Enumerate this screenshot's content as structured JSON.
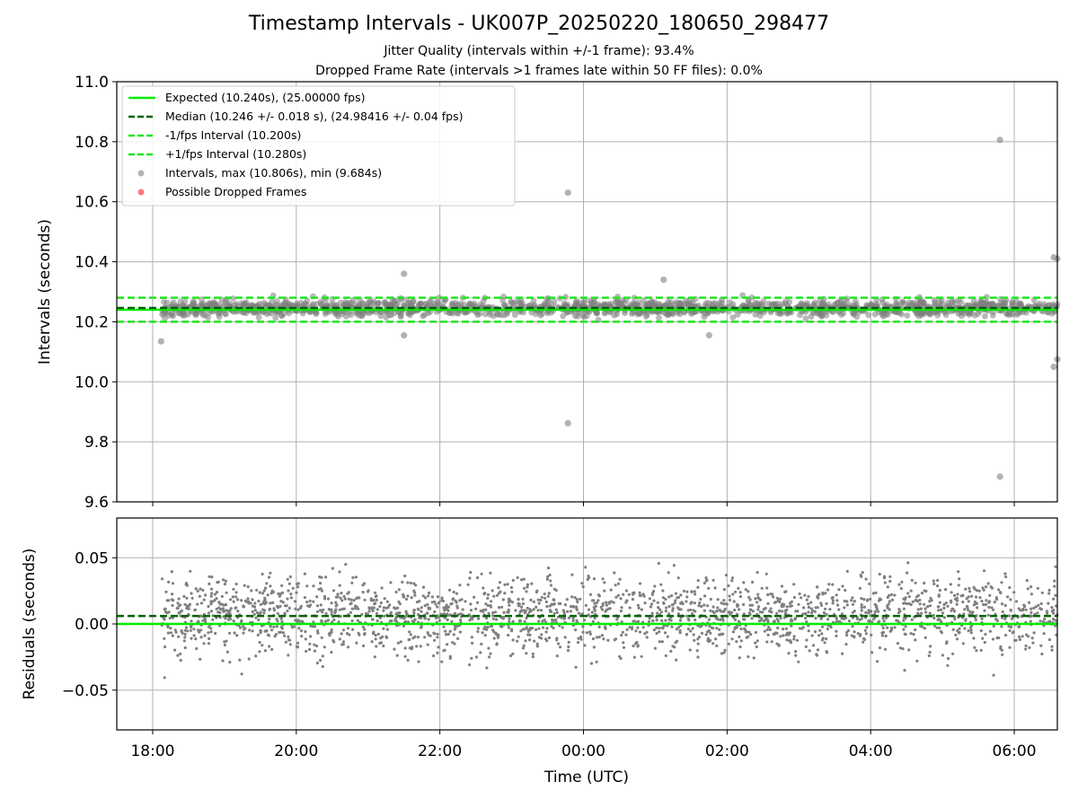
{
  "figure": {
    "title": "Timestamp Intervals - UK007P_20250220_180650_298477",
    "subtitle_1": "Jitter Quality (intervals within +/-1 frame): 93.4%",
    "subtitle_2": "Dropped Frame Rate (intervals >1 frames late within 50 FF files): 0.0%"
  },
  "colors": {
    "expected": "#00ee00",
    "median": "#006400",
    "fps_interval": "#1ee61e",
    "points": "#808080",
    "dropped": "#ff4040",
    "grid": "#b0b0b0"
  },
  "chart_data": [
    {
      "type": "scatter",
      "panel": "intervals",
      "ylabel": "Intervals (seconds)",
      "xlabel": "",
      "ylim": [
        9.6,
        11.0
      ],
      "y_ticks": [
        "9.6",
        "9.8",
        "10.0",
        "10.2",
        "10.4",
        "10.6",
        "10.8",
        "11.0"
      ],
      "x_range_hours": [
        "2025-02-20 17:30",
        "2025-02-21 06:36"
      ],
      "grid": true,
      "legend_position": "upper-left",
      "lines": [
        {
          "name": "Expected (10.240s), (25.00000 fps)",
          "y": 10.24,
          "style": "solid"
        },
        {
          "name": "Median (10.246 +/- 0.018 s), (24.98416 +/- 0.04 fps)",
          "y": 10.246,
          "style": "dashed"
        },
        {
          "name": "-1/fps Interval (10.200s)",
          "y": 10.2,
          "style": "dashed"
        },
        {
          "name": "+1/fps Interval (10.280s)",
          "y": 10.28,
          "style": "dashed"
        }
      ],
      "series": [
        {
          "name": "Intervals, max (10.806s), min (9.684s)",
          "points": "dense band ~10.20–10.30 s from 18:07 to 06:36",
          "outliers": [
            {
              "x": "2025-02-20 18:07",
              "y": 10.135
            },
            {
              "x": "2025-02-20 21:30",
              "y": 10.36
            },
            {
              "x": "2025-02-20 21:30",
              "y": 10.155
            },
            {
              "x": "2025-02-20 23:47",
              "y": 10.63
            },
            {
              "x": "2025-02-20 23:47",
              "y": 9.862
            },
            {
              "x": "2025-02-21 01:07",
              "y": 10.34
            },
            {
              "x": "2025-02-21 01:45",
              "y": 10.155
            },
            {
              "x": "2025-02-21 05:48",
              "y": 10.806
            },
            {
              "x": "2025-02-21 05:48",
              "y": 9.684
            },
            {
              "x": "2025-02-21 06:33",
              "y": 10.415
            },
            {
              "x": "2025-02-21 06:33",
              "y": 10.05
            },
            {
              "x": "2025-02-21 06:36",
              "y": 10.075
            },
            {
              "x": "2025-02-21 06:36",
              "y": 10.41
            }
          ]
        },
        {
          "name": "Possible Dropped Frames",
          "points": []
        }
      ]
    },
    {
      "type": "scatter",
      "panel": "residuals",
      "ylabel": "Residuals (seconds)",
      "xlabel": "Time (UTC)",
      "ylim": [
        -0.08,
        0.08
      ],
      "y_ticks": [
        "−0.05",
        "0.00",
        "0.05"
      ],
      "x_ticks": [
        "18:00",
        "20:00",
        "22:00",
        "00:00",
        "02:00",
        "04:00",
        "06:00"
      ],
      "grid": true,
      "lines": [
        {
          "y": 0.0,
          "style": "solid"
        },
        {
          "y": 0.006,
          "style": "dashed"
        }
      ],
      "series": [
        {
          "points": "scatter roughly between -0.06 and 0.07 s, centred near +0.005 s, 18:07 to 06:36"
        }
      ]
    }
  ]
}
